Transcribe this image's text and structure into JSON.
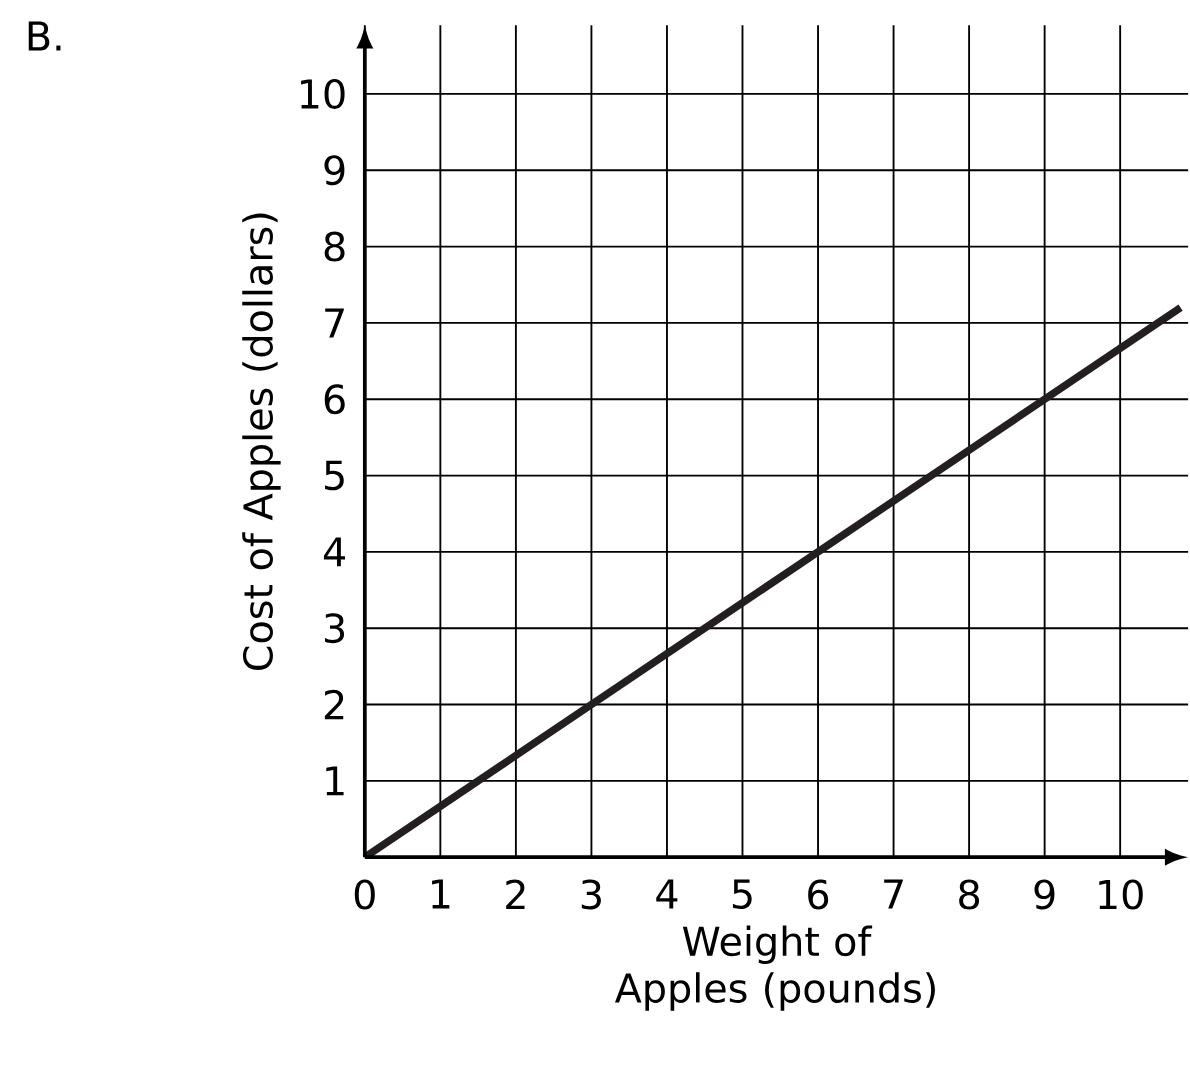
{
  "chart_data": {
    "type": "line",
    "title": "B.",
    "xlabel": "Weight of Apples (pounds)",
    "ylabel": "Cost of Apples (dollars)",
    "x": [
      0,
      10.8
    ],
    "series": [
      {
        "color": "#231f20",
        "values": [
          0,
          7.2
        ]
      }
    ],
    "xlim": [
      0,
      10.9
    ],
    "ylim": [
      0,
      10.9
    ],
    "xticks": [
      0,
      1,
      2,
      3,
      4,
      5,
      6,
      7,
      8,
      9,
      10
    ],
    "yticks": [
      1,
      2,
      3,
      4,
      5,
      6,
      7,
      8,
      9,
      10
    ],
    "grid": true,
    "marker": "none",
    "line_style": "solid"
  }
}
